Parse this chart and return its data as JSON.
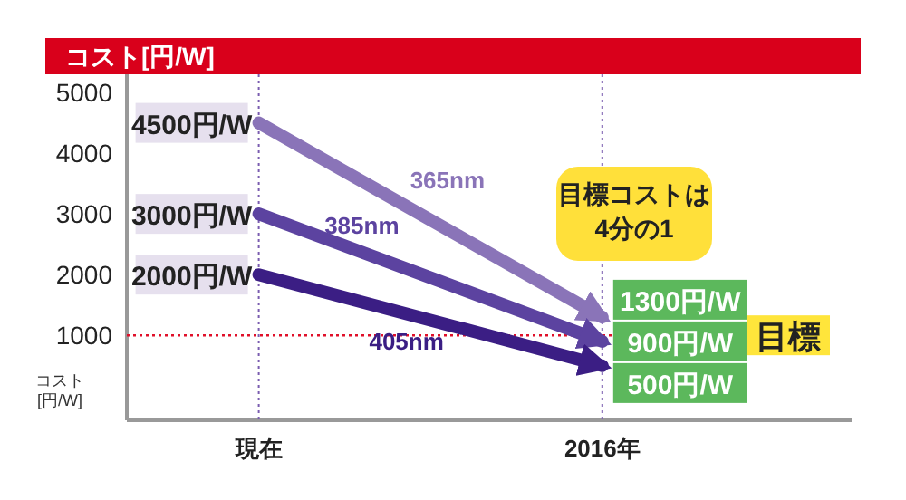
{
  "chart_data": {
    "type": "line",
    "title": "コスト[円/W]",
    "ylabel": "コスト[円/W]",
    "categories": [
      "現在",
      "2016年"
    ],
    "series": [
      {
        "name": "365nm",
        "color": "#8a74b8",
        "values": [
          4500,
          1300
        ],
        "value_labels": [
          "4500円/W",
          "1300円/W"
        ]
      },
      {
        "name": "385nm",
        "color": "#5c43a0",
        "values": [
          3000,
          900
        ],
        "value_labels": [
          "3000円/W",
          "900円/W"
        ]
      },
      {
        "name": "405nm",
        "color": "#3b1e84",
        "values": [
          2000,
          500
        ],
        "value_labels": [
          "2000円/W",
          "500円/W"
        ]
      }
    ],
    "ylim": [
      -400,
      5300
    ],
    "yticks": [
      1000,
      2000,
      3000,
      4000,
      5000
    ],
    "marker": "none",
    "legend": false,
    "ref_lines": [
      {
        "axis": "y",
        "value": 1000,
        "label": "目標",
        "color": "#e0102a",
        "line_style": "dotted"
      },
      {
        "axis": "x",
        "value": "現在",
        "color": "#7a5cb0",
        "line_style": "dotted"
      },
      {
        "axis": "x",
        "value": "2016年",
        "color": "#7a5cb0",
        "line_style": "dotted"
      }
    ],
    "annotations": [
      "目標コストは\n4分の1"
    ]
  }
}
